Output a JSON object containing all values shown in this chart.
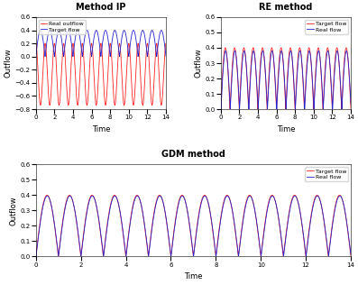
{
  "title_ip": "Method IP",
  "title_re": "RE method",
  "title_gdm": "GDM method",
  "xlabel": "Time",
  "ylabel": "Outflow",
  "xlim": [
    0,
    14
  ],
  "ylim_ip": [
    -0.8,
    0.6
  ],
  "ylim_re": [
    0.0,
    0.6
  ],
  "ylim_gdm": [
    0.0,
    0.6
  ],
  "xticks_ip": [
    0,
    2,
    4,
    6,
    8,
    10,
    12,
    14
  ],
  "xticks_re": [
    0,
    2,
    4,
    6,
    8,
    10,
    12,
    14
  ],
  "xticks_gdm": [
    0,
    2,
    4,
    6,
    8,
    10,
    12,
    14
  ],
  "yticks_ip": [
    -0.8,
    -0.6,
    -0.4,
    -0.2,
    0.0,
    0.2,
    0.4,
    0.6
  ],
  "yticks_re": [
    0.0,
    0.1,
    0.2,
    0.3,
    0.4,
    0.5,
    0.6
  ],
  "yticks_gdm": [
    0.0,
    0.1,
    0.2,
    0.3,
    0.4,
    0.5,
    0.6
  ],
  "legend_ip_real": "Real outflow",
  "legend_ip_target": "Target flow",
  "legend_re_target": "Target flow",
  "legend_re_real": "Real flow",
  "legend_gdm_target": "Target flow",
  "legend_gdm_real": "Real flow",
  "color_real": "#FF2222",
  "color_target": "#2222CC",
  "background": "#FFFFFF",
  "fontsize_title": 7,
  "fontsize_label": 6,
  "fontsize_tick": 5,
  "fontsize_legend": 4.5,
  "linewidth": 0.6
}
